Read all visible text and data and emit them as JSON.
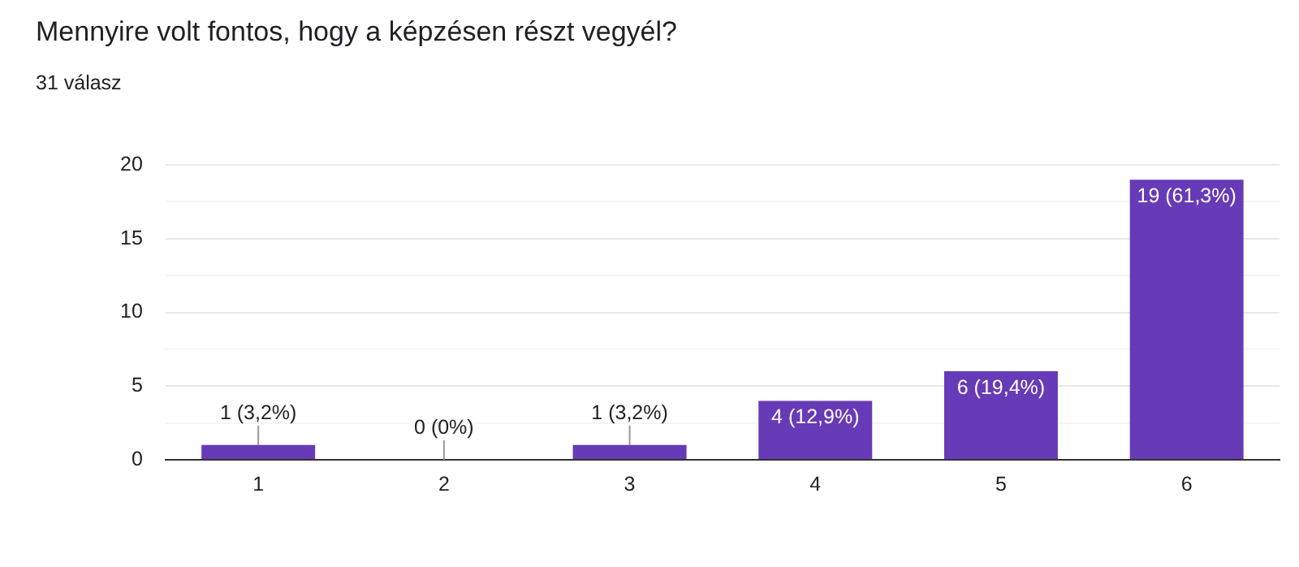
{
  "chart_data": {
    "type": "bar",
    "title": "Mennyire volt fontos, hogy a képzésen részt vegyél?",
    "subtitle": "31 válasz",
    "categories": [
      "1",
      "2",
      "3",
      "4",
      "5",
      "6"
    ],
    "values": [
      1,
      0,
      1,
      4,
      6,
      19
    ],
    "value_labels": [
      "1 (3,2%)",
      "0 (0%)",
      "1 (3,2%)",
      "4 (12,9%)",
      "6 (19,4%)",
      "19 (61,3%)"
    ],
    "color": "#673ab7",
    "ylim": [
      0,
      20
    ],
    "yticks": [
      0,
      {
        "value": 2.5,
        "label": null
      },
      5,
      {
        "value": 7.5,
        "label": null
      },
      10,
      {
        "value": 12.5,
        "label": null
      },
      15,
      {
        "value": 17.5,
        "label": null
      },
      20
    ],
    "grid": "y",
    "legend": false
  }
}
